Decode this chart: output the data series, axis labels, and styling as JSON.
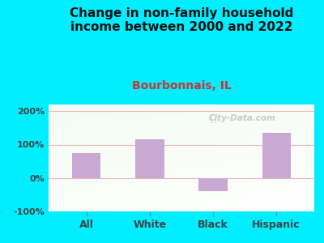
{
  "title": "Change in non-family household\nincome between 2000 and 2022",
  "subtitle": "Bourbonnais, IL",
  "categories": [
    "All",
    "White",
    "Black",
    "Hispanic"
  ],
  "values": [
    75,
    115,
    -40,
    135
  ],
  "bar_color": "#c9a8d4",
  "title_fontsize": 11,
  "subtitle_fontsize": 10,
  "subtitle_color": "#cc3333",
  "title_color": "#111111",
  "background_outer": "#00eeff",
  "tick_color": "#444444",
  "grid_color": "#e8b8b8",
  "ylim": [
    -100,
    220
  ],
  "yticks": [
    -100,
    0,
    100,
    200
  ],
  "ytick_labels": [
    "-100%",
    "0%",
    "100%",
    "200%"
  ],
  "watermark": "City-Data.com",
  "bar_width": 0.45,
  "xlim": [
    -0.6,
    3.6
  ]
}
